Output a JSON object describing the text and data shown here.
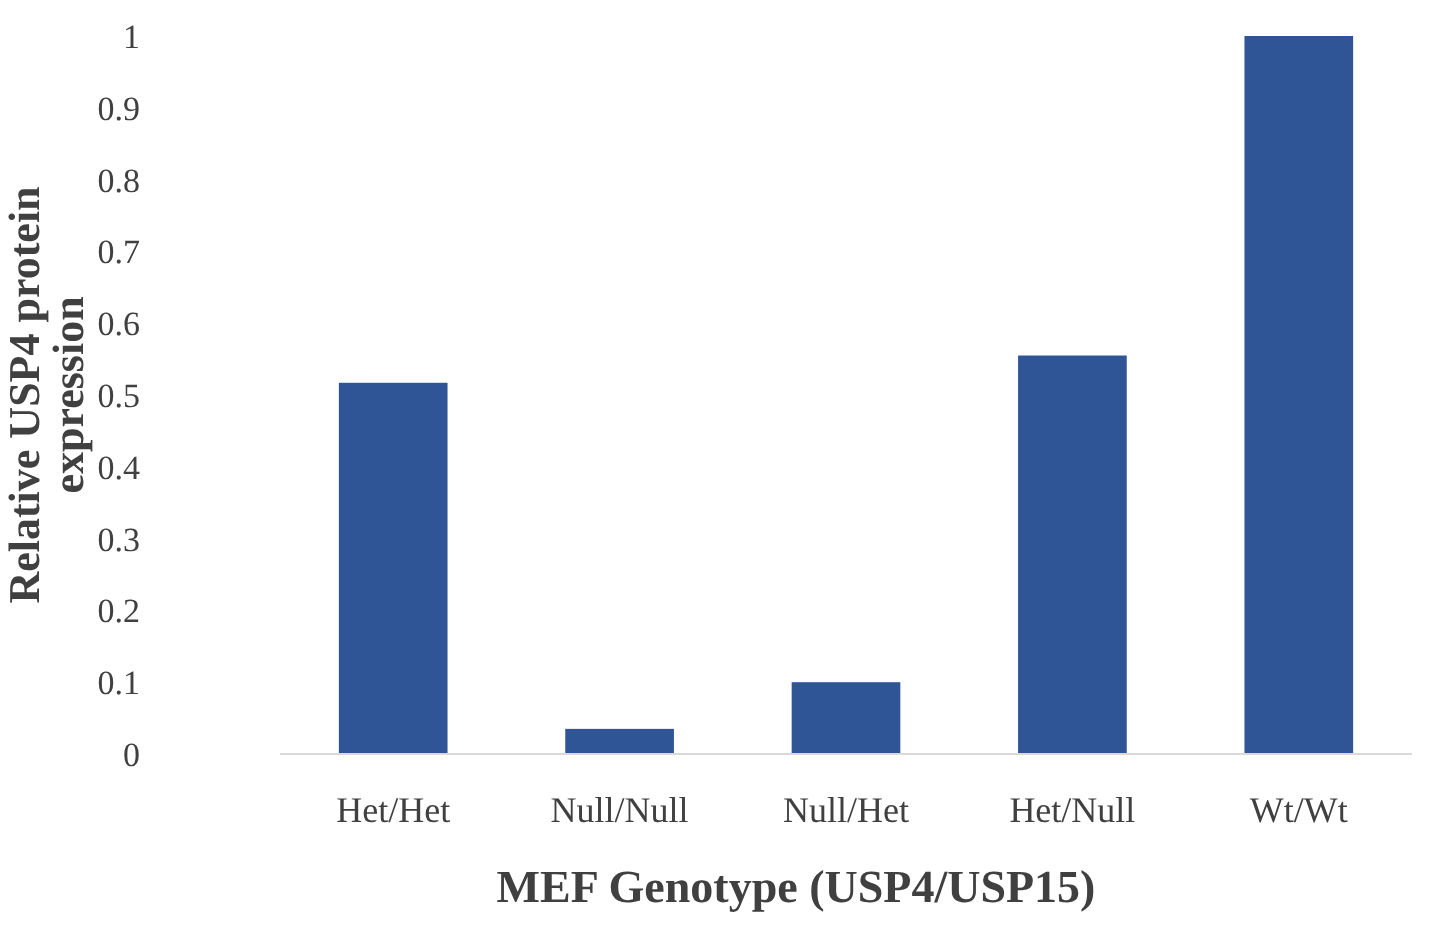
{
  "chart_data": {
    "type": "bar",
    "xlabel": "MEF Genotype (USP4/USP15)",
    "ylabel": "Relative USP4 protein expression",
    "categories": [
      "Het/Het",
      "Null/Null",
      "Null/Het",
      "Het/Null",
      "Wt/Wt"
    ],
    "values": [
      0.517,
      0.035,
      0.1,
      0.555,
      1
    ],
    "color": "#2f5597",
    "ylim": [
      0,
      1
    ],
    "yticks": [
      0,
      0.1,
      0.2,
      0.3,
      0.4,
      0.5,
      0.6,
      0.7,
      0.8,
      0.9,
      1
    ],
    "grid": false
  }
}
